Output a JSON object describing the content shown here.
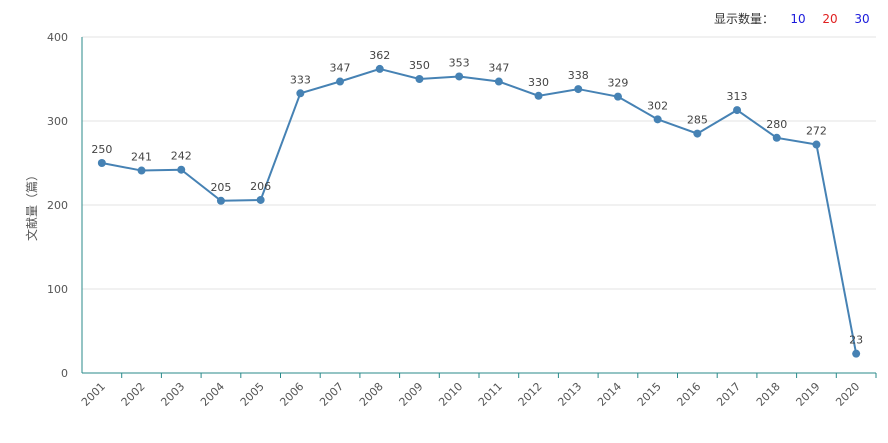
{
  "controls": {
    "label": "显示数量：",
    "options": [
      {
        "label": "10",
        "color": "#1a1adb"
      },
      {
        "label": "20",
        "color": "#e02020"
      },
      {
        "label": "30",
        "color": "#1a1adb"
      }
    ]
  },
  "chart_data": {
    "type": "line",
    "title": "",
    "xlabel": "",
    "ylabel": "文献量（篇）",
    "ylim": [
      0,
      400
    ],
    "yticks": [
      0,
      100,
      200,
      300,
      400
    ],
    "grid": true,
    "color": "#4682b4",
    "categories": [
      "2001",
      "2002",
      "2003",
      "2004",
      "2005",
      "2006",
      "2007",
      "2008",
      "2009",
      "2010",
      "2011",
      "2012",
      "2013",
      "2014",
      "2015",
      "2016",
      "2017",
      "2018",
      "2019",
      "2020"
    ],
    "series": [
      {
        "values": [
          250,
          241,
          242,
          205,
          206,
          333,
          347,
          362,
          350,
          353,
          347,
          330,
          338,
          329,
          302,
          285,
          313,
          280,
          272,
          23
        ]
      }
    ]
  }
}
